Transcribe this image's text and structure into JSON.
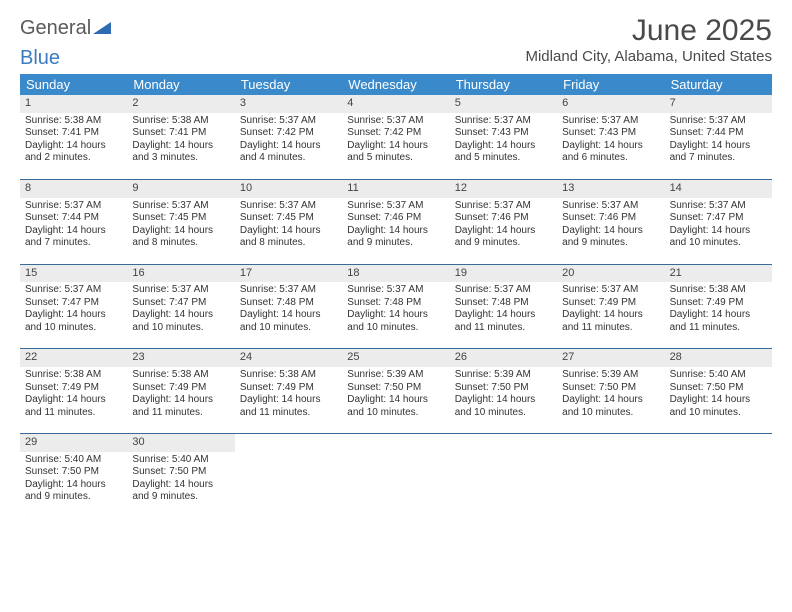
{
  "brand": {
    "part1": "General",
    "part2": "Blue"
  },
  "title": "June 2025",
  "location": "Midland City, Alabama, United States",
  "colors": {
    "header_bg": "#3a8acb",
    "header_text": "#ffffff",
    "week_border": "#3a6a9a",
    "daynum_bg": "#ececec",
    "text": "#333333",
    "brand_gray": "#5a5a5a",
    "brand_blue": "#3a7bc4"
  },
  "day_names": [
    "Sunday",
    "Monday",
    "Tuesday",
    "Wednesday",
    "Thursday",
    "Friday",
    "Saturday"
  ],
  "weeks": [
    [
      {
        "n": "1",
        "sunrise": "Sunrise: 5:38 AM",
        "sunset": "Sunset: 7:41 PM",
        "daylight": "Daylight: 14 hours and 2 minutes."
      },
      {
        "n": "2",
        "sunrise": "Sunrise: 5:38 AM",
        "sunset": "Sunset: 7:41 PM",
        "daylight": "Daylight: 14 hours and 3 minutes."
      },
      {
        "n": "3",
        "sunrise": "Sunrise: 5:37 AM",
        "sunset": "Sunset: 7:42 PM",
        "daylight": "Daylight: 14 hours and 4 minutes."
      },
      {
        "n": "4",
        "sunrise": "Sunrise: 5:37 AM",
        "sunset": "Sunset: 7:42 PM",
        "daylight": "Daylight: 14 hours and 5 minutes."
      },
      {
        "n": "5",
        "sunrise": "Sunrise: 5:37 AM",
        "sunset": "Sunset: 7:43 PM",
        "daylight": "Daylight: 14 hours and 5 minutes."
      },
      {
        "n": "6",
        "sunrise": "Sunrise: 5:37 AM",
        "sunset": "Sunset: 7:43 PM",
        "daylight": "Daylight: 14 hours and 6 minutes."
      },
      {
        "n": "7",
        "sunrise": "Sunrise: 5:37 AM",
        "sunset": "Sunset: 7:44 PM",
        "daylight": "Daylight: 14 hours and 7 minutes."
      }
    ],
    [
      {
        "n": "8",
        "sunrise": "Sunrise: 5:37 AM",
        "sunset": "Sunset: 7:44 PM",
        "daylight": "Daylight: 14 hours and 7 minutes."
      },
      {
        "n": "9",
        "sunrise": "Sunrise: 5:37 AM",
        "sunset": "Sunset: 7:45 PM",
        "daylight": "Daylight: 14 hours and 8 minutes."
      },
      {
        "n": "10",
        "sunrise": "Sunrise: 5:37 AM",
        "sunset": "Sunset: 7:45 PM",
        "daylight": "Daylight: 14 hours and 8 minutes."
      },
      {
        "n": "11",
        "sunrise": "Sunrise: 5:37 AM",
        "sunset": "Sunset: 7:46 PM",
        "daylight": "Daylight: 14 hours and 9 minutes."
      },
      {
        "n": "12",
        "sunrise": "Sunrise: 5:37 AM",
        "sunset": "Sunset: 7:46 PM",
        "daylight": "Daylight: 14 hours and 9 minutes."
      },
      {
        "n": "13",
        "sunrise": "Sunrise: 5:37 AM",
        "sunset": "Sunset: 7:46 PM",
        "daylight": "Daylight: 14 hours and 9 minutes."
      },
      {
        "n": "14",
        "sunrise": "Sunrise: 5:37 AM",
        "sunset": "Sunset: 7:47 PM",
        "daylight": "Daylight: 14 hours and 10 minutes."
      }
    ],
    [
      {
        "n": "15",
        "sunrise": "Sunrise: 5:37 AM",
        "sunset": "Sunset: 7:47 PM",
        "daylight": "Daylight: 14 hours and 10 minutes."
      },
      {
        "n": "16",
        "sunrise": "Sunrise: 5:37 AM",
        "sunset": "Sunset: 7:47 PM",
        "daylight": "Daylight: 14 hours and 10 minutes."
      },
      {
        "n": "17",
        "sunrise": "Sunrise: 5:37 AM",
        "sunset": "Sunset: 7:48 PM",
        "daylight": "Daylight: 14 hours and 10 minutes."
      },
      {
        "n": "18",
        "sunrise": "Sunrise: 5:37 AM",
        "sunset": "Sunset: 7:48 PM",
        "daylight": "Daylight: 14 hours and 10 minutes."
      },
      {
        "n": "19",
        "sunrise": "Sunrise: 5:37 AM",
        "sunset": "Sunset: 7:48 PM",
        "daylight": "Daylight: 14 hours and 11 minutes."
      },
      {
        "n": "20",
        "sunrise": "Sunrise: 5:37 AM",
        "sunset": "Sunset: 7:49 PM",
        "daylight": "Daylight: 14 hours and 11 minutes."
      },
      {
        "n": "21",
        "sunrise": "Sunrise: 5:38 AM",
        "sunset": "Sunset: 7:49 PM",
        "daylight": "Daylight: 14 hours and 11 minutes."
      }
    ],
    [
      {
        "n": "22",
        "sunrise": "Sunrise: 5:38 AM",
        "sunset": "Sunset: 7:49 PM",
        "daylight": "Daylight: 14 hours and 11 minutes."
      },
      {
        "n": "23",
        "sunrise": "Sunrise: 5:38 AM",
        "sunset": "Sunset: 7:49 PM",
        "daylight": "Daylight: 14 hours and 11 minutes."
      },
      {
        "n": "24",
        "sunrise": "Sunrise: 5:38 AM",
        "sunset": "Sunset: 7:49 PM",
        "daylight": "Daylight: 14 hours and 11 minutes."
      },
      {
        "n": "25",
        "sunrise": "Sunrise: 5:39 AM",
        "sunset": "Sunset: 7:50 PM",
        "daylight": "Daylight: 14 hours and 10 minutes."
      },
      {
        "n": "26",
        "sunrise": "Sunrise: 5:39 AM",
        "sunset": "Sunset: 7:50 PM",
        "daylight": "Daylight: 14 hours and 10 minutes."
      },
      {
        "n": "27",
        "sunrise": "Sunrise: 5:39 AM",
        "sunset": "Sunset: 7:50 PM",
        "daylight": "Daylight: 14 hours and 10 minutes."
      },
      {
        "n": "28",
        "sunrise": "Sunrise: 5:40 AM",
        "sunset": "Sunset: 7:50 PM",
        "daylight": "Daylight: 14 hours and 10 minutes."
      }
    ],
    [
      {
        "n": "29",
        "sunrise": "Sunrise: 5:40 AM",
        "sunset": "Sunset: 7:50 PM",
        "daylight": "Daylight: 14 hours and 9 minutes."
      },
      {
        "n": "30",
        "sunrise": "Sunrise: 5:40 AM",
        "sunset": "Sunset: 7:50 PM",
        "daylight": "Daylight: 14 hours and 9 minutes."
      },
      null,
      null,
      null,
      null,
      null
    ]
  ]
}
